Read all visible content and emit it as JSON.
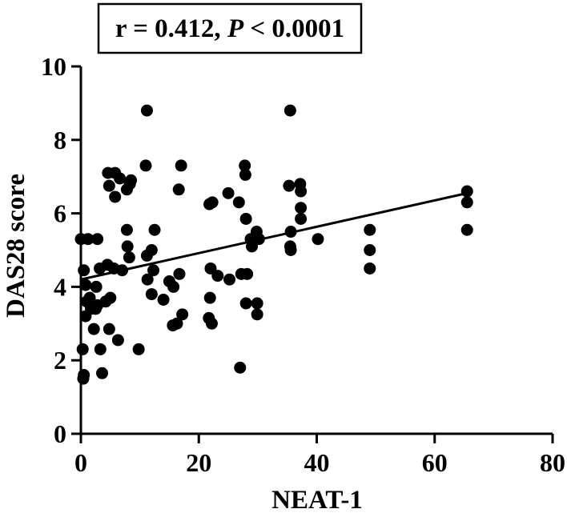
{
  "chart_data": {
    "type": "scatter",
    "annotation": {
      "r_text": "r = 0.412, ",
      "p_symbol": "P",
      "p_text": " < 0.0001"
    },
    "xlabel": "NEAT-1",
    "ylabel": "DAS28 score",
    "xlim": [
      0,
      80
    ],
    "ylim": [
      0,
      10
    ],
    "x_ticks": [
      0,
      20,
      40,
      60,
      80
    ],
    "y_ticks": [
      0,
      2,
      4,
      6,
      8,
      10
    ],
    "x_tick_labels": [
      "0",
      "20",
      "40",
      "60",
      "80"
    ],
    "y_tick_labels": [
      "0",
      "2",
      "4",
      "6",
      "8",
      "10"
    ],
    "grid": false,
    "regression_line": {
      "x": [
        0,
        65.5
      ],
      "y": [
        4.2,
        6.55
      ]
    },
    "points": [
      {
        "x": 0.0,
        "y": 5.3
      },
      {
        "x": 0.5,
        "y": 4.45
      },
      {
        "x": 0.3,
        "y": 2.3
      },
      {
        "x": 0.5,
        "y": 1.6
      },
      {
        "x": 0.4,
        "y": 1.5
      },
      {
        "x": 0.8,
        "y": 3.2
      },
      {
        "x": 0.8,
        "y": 4.05
      },
      {
        "x": 1.0,
        "y": 3.6
      },
      {
        "x": 1.5,
        "y": 3.7
      },
      {
        "x": 1.7,
        "y": 3.4
      },
      {
        "x": 1.2,
        "y": 5.3
      },
      {
        "x": 2.8,
        "y": 5.3
      },
      {
        "x": 2.2,
        "y": 2.85
      },
      {
        "x": 2.5,
        "y": 3.4
      },
      {
        "x": 2.6,
        "y": 4.0
      },
      {
        "x": 2.8,
        "y": 3.5
      },
      {
        "x": 3.2,
        "y": 4.5
      },
      {
        "x": 3.3,
        "y": 2.3
      },
      {
        "x": 3.6,
        "y": 1.65
      },
      {
        "x": 4.2,
        "y": 3.6
      },
      {
        "x": 4.5,
        "y": 4.6
      },
      {
        "x": 4.6,
        "y": 7.1
      },
      {
        "x": 4.8,
        "y": 6.75
      },
      {
        "x": 5.0,
        "y": 3.7
      },
      {
        "x": 4.8,
        "y": 2.85
      },
      {
        "x": 5.8,
        "y": 7.1
      },
      {
        "x": 5.8,
        "y": 6.45
      },
      {
        "x": 5.6,
        "y": 4.5
      },
      {
        "x": 6.3,
        "y": 2.55
      },
      {
        "x": 6.6,
        "y": 6.95
      },
      {
        "x": 7.0,
        "y": 4.45
      },
      {
        "x": 7.8,
        "y": 6.65
      },
      {
        "x": 7.8,
        "y": 5.55
      },
      {
        "x": 7.9,
        "y": 5.1
      },
      {
        "x": 8.2,
        "y": 4.8
      },
      {
        "x": 8.3,
        "y": 6.8
      },
      {
        "x": 8.5,
        "y": 6.9
      },
      {
        "x": 9.8,
        "y": 2.3
      },
      {
        "x": 11.2,
        "y": 8.8
      },
      {
        "x": 11.0,
        "y": 7.3
      },
      {
        "x": 11.2,
        "y": 4.85
      },
      {
        "x": 11.3,
        "y": 4.2
      },
      {
        "x": 12.0,
        "y": 3.8
      },
      {
        "x": 12.0,
        "y": 5.0
      },
      {
        "x": 12.3,
        "y": 4.45
      },
      {
        "x": 12.5,
        "y": 5.55
      },
      {
        "x": 14.0,
        "y": 3.65
      },
      {
        "x": 15.0,
        "y": 4.15
      },
      {
        "x": 15.6,
        "y": 2.95
      },
      {
        "x": 15.7,
        "y": 4.0
      },
      {
        "x": 16.3,
        "y": 3.0
      },
      {
        "x": 16.6,
        "y": 6.65
      },
      {
        "x": 16.7,
        "y": 4.35
      },
      {
        "x": 17.0,
        "y": 7.3
      },
      {
        "x": 17.2,
        "y": 3.25
      },
      {
        "x": 21.7,
        "y": 3.15
      },
      {
        "x": 21.8,
        "y": 6.25
      },
      {
        "x": 21.9,
        "y": 3.7
      },
      {
        "x": 22.0,
        "y": 4.5
      },
      {
        "x": 22.2,
        "y": 3.0
      },
      {
        "x": 22.3,
        "y": 6.3
      },
      {
        "x": 23.2,
        "y": 4.3
      },
      {
        "x": 25.0,
        "y": 6.55
      },
      {
        "x": 25.2,
        "y": 4.2
      },
      {
        "x": 26.8,
        "y": 6.3
      },
      {
        "x": 27.2,
        "y": 4.35
      },
      {
        "x": 27.0,
        "y": 1.8
      },
      {
        "x": 27.8,
        "y": 7.3
      },
      {
        "x": 27.9,
        "y": 7.05
      },
      {
        "x": 28.0,
        "y": 5.85
      },
      {
        "x": 28.0,
        "y": 3.55
      },
      {
        "x": 28.2,
        "y": 4.35
      },
      {
        "x": 28.8,
        "y": 5.3
      },
      {
        "x": 29.0,
        "y": 5.1
      },
      {
        "x": 29.8,
        "y": 5.5
      },
      {
        "x": 29.9,
        "y": 3.55
      },
      {
        "x": 29.9,
        "y": 3.25
      },
      {
        "x": 30.2,
        "y": 5.3
      },
      {
        "x": 35.5,
        "y": 8.8
      },
      {
        "x": 35.3,
        "y": 6.75
      },
      {
        "x": 35.6,
        "y": 5.5
      },
      {
        "x": 35.5,
        "y": 5.1
      },
      {
        "x": 35.6,
        "y": 5.0
      },
      {
        "x": 37.2,
        "y": 6.8
      },
      {
        "x": 37.3,
        "y": 6.6
      },
      {
        "x": 37.3,
        "y": 6.15
      },
      {
        "x": 37.3,
        "y": 5.85
      },
      {
        "x": 40.2,
        "y": 5.3
      },
      {
        "x": 49.0,
        "y": 5.55
      },
      {
        "x": 49.0,
        "y": 5.0
      },
      {
        "x": 49.0,
        "y": 4.5
      },
      {
        "x": 65.5,
        "y": 6.6
      },
      {
        "x": 65.5,
        "y": 6.3
      },
      {
        "x": 65.5,
        "y": 5.55
      }
    ]
  }
}
